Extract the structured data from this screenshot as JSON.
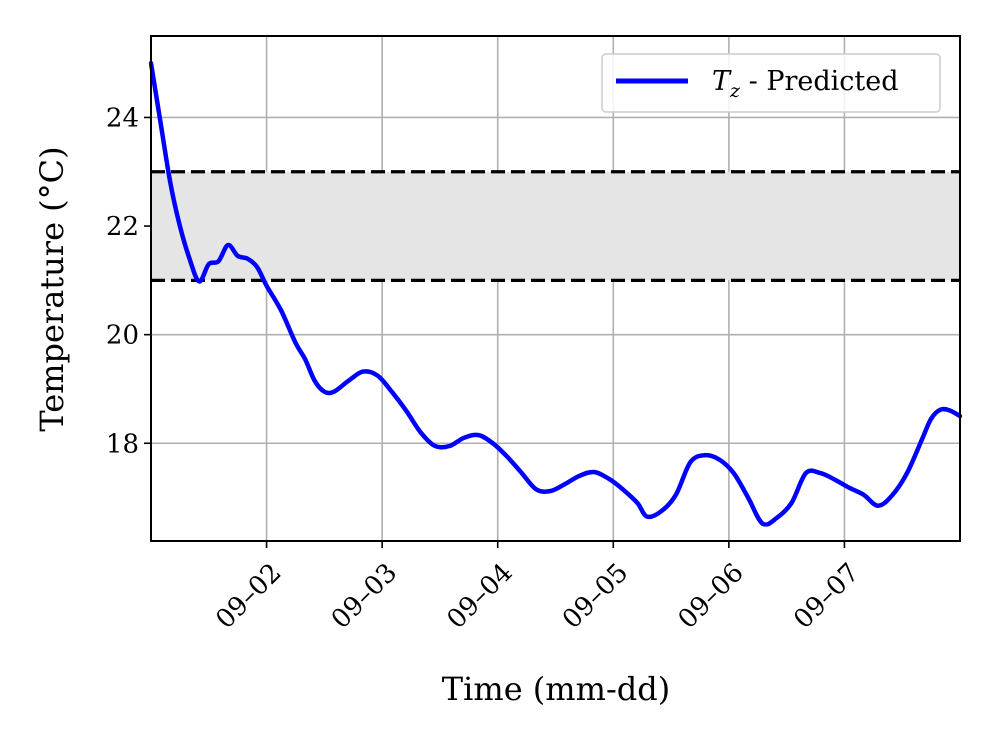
{
  "chart_data": {
    "type": "line",
    "xlabel": "Time (mm-dd)",
    "ylabel": "Temperature (°C)",
    "x_range_days": [
      "09-01",
      "09-08"
    ],
    "ylim": [
      16.2,
      25.5
    ],
    "x_ticks": [
      {
        "label": "09–02",
        "date": "09-02"
      },
      {
        "label": "09–03",
        "date": "09-03"
      },
      {
        "label": "09–04",
        "date": "09-04"
      },
      {
        "label": "09–05",
        "date": "09-05"
      },
      {
        "label": "09–06",
        "date": "09-06"
      },
      {
        "label": "09–07",
        "date": "09-07"
      }
    ],
    "y_ticks": [
      18,
      20,
      22,
      24
    ],
    "grid": true,
    "comfort_band": {
      "low": 21,
      "high": 23,
      "fill": "#e5e5e5",
      "line_color": "#000000",
      "line_style": "dashed"
    },
    "series": [
      {
        "name": "Tz - Predicted",
        "color": "#0000ff",
        "points": [
          [
            "09-01 00:00",
            25.0
          ],
          [
            "09-01 02:00",
            23.9
          ],
          [
            "09-01 04:00",
            22.8
          ],
          [
            "09-01 06:00",
            22.0
          ],
          [
            "09-01 08:00",
            21.4
          ],
          [
            "09-01 10:00",
            20.98
          ],
          [
            "09-01 12:00",
            21.3
          ],
          [
            "09-01 14:00",
            21.35
          ],
          [
            "09-01 16:00",
            21.65
          ],
          [
            "09-01 18:00",
            21.45
          ],
          [
            "09-01 20:00",
            21.4
          ],
          [
            "09-01 22:00",
            21.25
          ],
          [
            "09-02 00:00",
            20.9
          ],
          [
            "09-02 03:00",
            20.45
          ],
          [
            "09-02 06:00",
            19.85
          ],
          [
            "09-02 08:00",
            19.55
          ],
          [
            "09-02 10:00",
            19.15
          ],
          [
            "09-02 12:00",
            18.95
          ],
          [
            "09-02 14:00",
            18.95
          ],
          [
            "09-02 17:00",
            19.15
          ],
          [
            "09-02 20:00",
            19.32
          ],
          [
            "09-02 23:00",
            19.25
          ],
          [
            "09-03 02:00",
            18.95
          ],
          [
            "09-03 05:00",
            18.6
          ],
          [
            "09-03 08:00",
            18.2
          ],
          [
            "09-03 11:00",
            17.95
          ],
          [
            "09-03 14:00",
            17.95
          ],
          [
            "09-03 17:00",
            18.1
          ],
          [
            "09-03 20:00",
            18.15
          ],
          [
            "09-03 23:00",
            18.0
          ],
          [
            "09-04 02:00",
            17.75
          ],
          [
            "09-04 05:00",
            17.45
          ],
          [
            "09-04 08:00",
            17.15
          ],
          [
            "09-04 11:00",
            17.12
          ],
          [
            "09-04 14:00",
            17.25
          ],
          [
            "09-04 17:00",
            17.4
          ],
          [
            "09-04 20:00",
            17.47
          ],
          [
            "09-04 23:00",
            17.35
          ],
          [
            "09-05 02:00",
            17.15
          ],
          [
            "09-05 05:00",
            16.9
          ],
          [
            "09-05 07:00",
            16.65
          ],
          [
            "09-05 10:00",
            16.75
          ],
          [
            "09-05 13:00",
            17.05
          ],
          [
            "09-05 16:00",
            17.65
          ],
          [
            "09-05 19:00",
            17.78
          ],
          [
            "09-05 22:00",
            17.7
          ],
          [
            "09-06 01:00",
            17.45
          ],
          [
            "09-06 04:00",
            17.0
          ],
          [
            "09-06 07:00",
            16.52
          ],
          [
            "09-06 10:00",
            16.63
          ],
          [
            "09-06 13:00",
            16.9
          ],
          [
            "09-06 16:00",
            17.45
          ],
          [
            "09-06 19:00",
            17.45
          ],
          [
            "09-06 22:00",
            17.33
          ],
          [
            "09-07 01:00",
            17.18
          ],
          [
            "09-07 04:00",
            17.05
          ],
          [
            "09-07 07:00",
            16.85
          ],
          [
            "09-07 10:00",
            17.05
          ],
          [
            "09-07 13:00",
            17.45
          ],
          [
            "09-07 16:00",
            18.05
          ],
          [
            "09-07 18:00",
            18.45
          ],
          [
            "09-07 20:00",
            18.62
          ],
          [
            "09-07 22:00",
            18.6
          ],
          [
            "09-08 00:00",
            18.5
          ]
        ]
      }
    ],
    "legend": {
      "position": "top-right",
      "label_main": "T",
      "label_sub": "z",
      "label_rest": " - Predicted"
    }
  }
}
